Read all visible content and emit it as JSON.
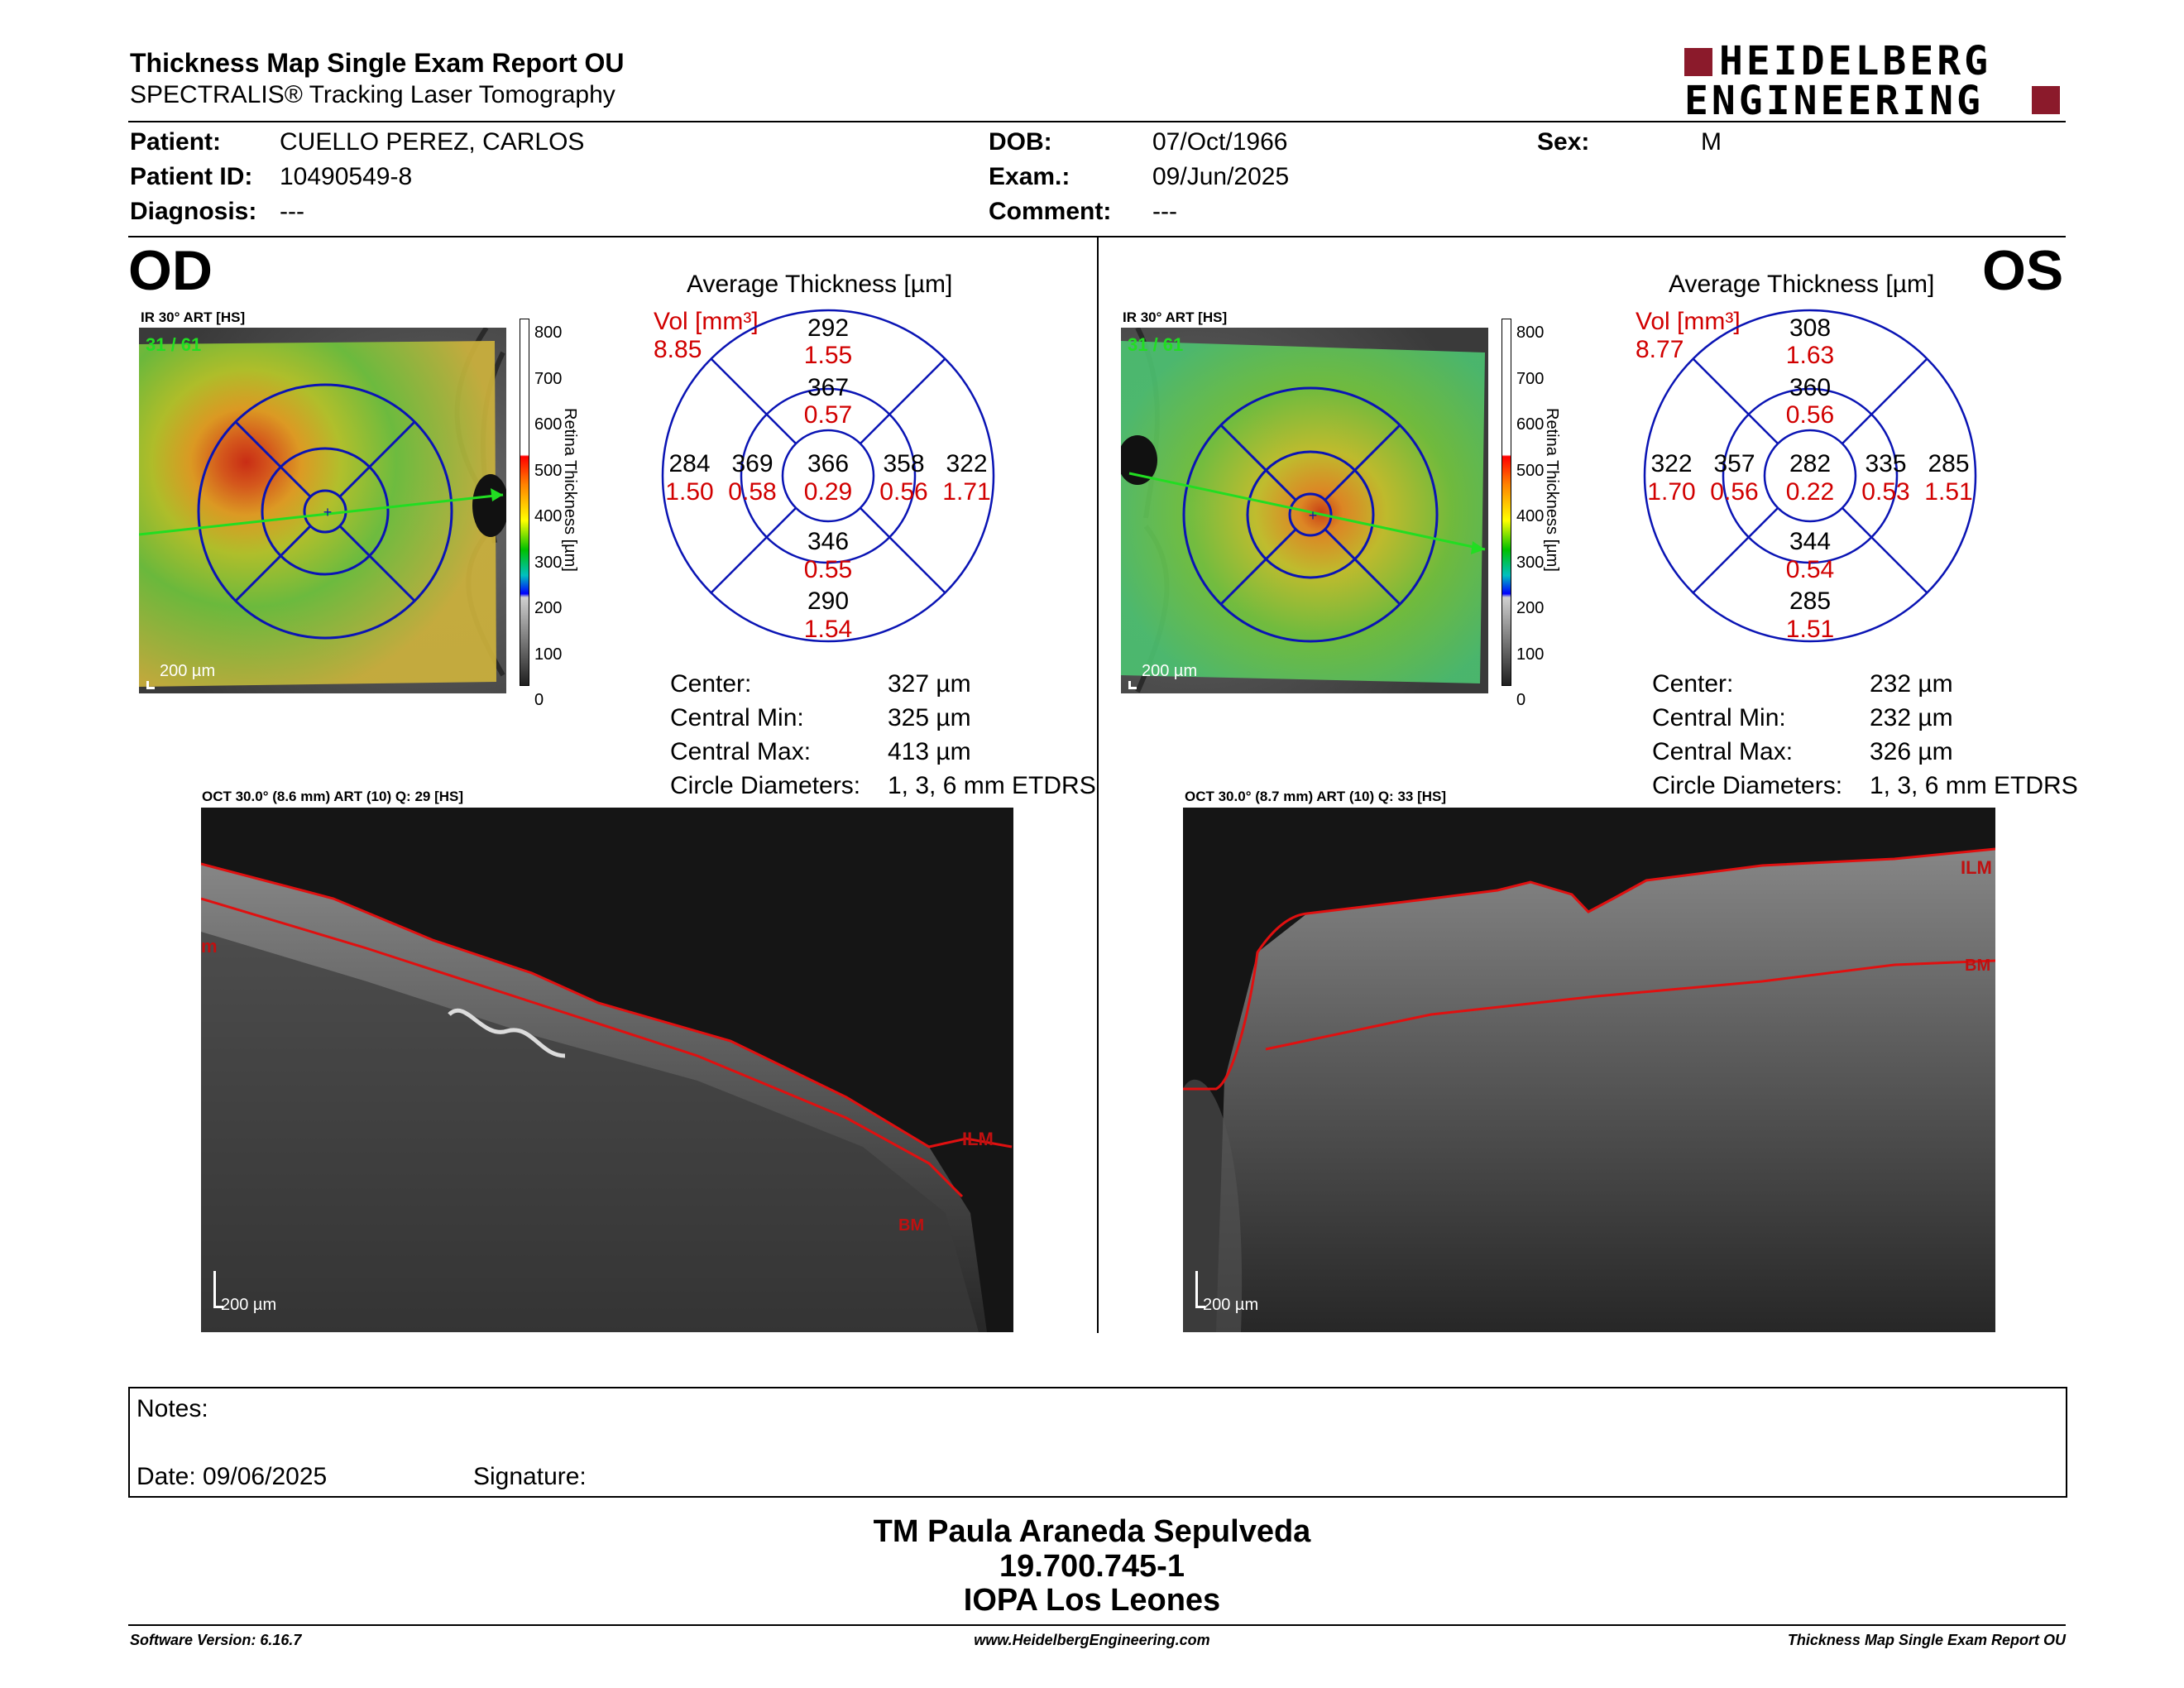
{
  "report": {
    "title": "Thickness Map Single Exam Report OU",
    "subtitle": "SPECTRALIS® Tracking Laser Tomography",
    "logo_line1": "HEIDELBERG",
    "logo_line2": "ENGINEERING"
  },
  "patient": {
    "patient_label": "Patient:",
    "patient_value": "CUELLO PEREZ, CARLOS",
    "id_label": "Patient ID:",
    "id_value": "10490549-8",
    "diagnosis_label": "Diagnosis:",
    "diagnosis_value": "---",
    "dob_label": "DOB:",
    "dob_value": "07/Oct/1966",
    "exam_label": "Exam.:",
    "exam_value": "09/Jun/2025",
    "comment_label": "Comment:",
    "comment_value": "---",
    "sex_label": "Sex:",
    "sex_value": "M"
  },
  "od": {
    "eye": "OD",
    "ir_title": "IR 30° ART [HS]",
    "frame": "31 / 61",
    "scale": "200 µm",
    "colorbar_ticks": [
      "800",
      "700",
      "600",
      "500",
      "400",
      "300",
      "200",
      "100",
      "0"
    ],
    "colorbar_label": "Retina Thickness [µm]",
    "avg_title": "Average Thickness [µm]",
    "vol_label": "Vol [mm³]",
    "vol_value": "8.85",
    "sectors": {
      "outer_top": "292",
      "outer_top_vol": "1.55",
      "inner_top": "367",
      "inner_top_vol": "0.57",
      "outer_left": "284",
      "outer_left_vol": "1.50",
      "inner_left": "369",
      "inner_left_vol": "0.58",
      "center": "366",
      "center_vol": "0.29",
      "inner_right": "358",
      "inner_right_vol": "0.56",
      "outer_right": "322",
      "outer_right_vol": "1.71",
      "inner_bottom": "346",
      "inner_bottom_vol": "0.55",
      "outer_bottom": "290",
      "outer_bottom_vol": "1.54"
    },
    "stats": {
      "center_label": "Center:",
      "center_value": "327 µm",
      "min_label": "Central Min:",
      "min_value": "325 µm",
      "max_label": "Central Max:",
      "max_value": "413 µm",
      "diam_label": "Circle Diameters:",
      "diam_value": "1, 3, 6 mm ETDRS"
    },
    "oct_title": "OCT 30.0° (8.6 mm) ART (10) Q: 29 [HS]",
    "oct_scale": "200 µm",
    "ilm": "ILM",
    "bm": "BM"
  },
  "os": {
    "eye": "OS",
    "ir_title": "IR 30° ART [HS]",
    "frame": "31 / 61",
    "scale": "200 µm",
    "colorbar_ticks": [
      "800",
      "700",
      "600",
      "500",
      "400",
      "300",
      "200",
      "100",
      "0"
    ],
    "colorbar_label": "Retina Thickness [µm]",
    "avg_title": "Average Thickness [µm]",
    "vol_label": "Vol [mm³]",
    "vol_value": "8.77",
    "sectors": {
      "outer_top": "308",
      "outer_top_vol": "1.63",
      "inner_top": "360",
      "inner_top_vol": "0.56",
      "outer_left": "322",
      "outer_left_vol": "1.70",
      "inner_left": "357",
      "inner_left_vol": "0.56",
      "center": "282",
      "center_vol": "0.22",
      "inner_right": "335",
      "inner_right_vol": "0.53",
      "outer_right": "285",
      "outer_right_vol": "1.51",
      "inner_bottom": "344",
      "inner_bottom_vol": "0.54",
      "outer_bottom": "285",
      "outer_bottom_vol": "1.51"
    },
    "stats": {
      "center_label": "Center:",
      "center_value": "232 µm",
      "min_label": "Central Min:",
      "min_value": "232 µm",
      "max_label": "Central Max:",
      "max_value": "326 µm",
      "diam_label": "Circle Diameters:",
      "diam_value": "1, 3, 6 mm ETDRS"
    },
    "oct_title": "OCT 30.0° (8.7 mm) ART (10) Q: 33 [HS]",
    "oct_scale": "200 µm",
    "ilm": "ILM",
    "bm": "BM"
  },
  "notes": {
    "notes_label": "Notes:",
    "date_label": "Date: 09/06/2025",
    "signature_label": "Signature:"
  },
  "signer": {
    "name": "TM Paula Araneda Sepulveda",
    "id": "19.700.745-1",
    "org": "IOPA Los Leones"
  },
  "footer": {
    "software": "Software Version: 6.16.7",
    "website": "www.HeidelbergEngineering.com",
    "report_name": "Thickness Map Single Exam Report OU"
  },
  "colors": {
    "accent_red": "#8b1a2b",
    "value_red": "#d10000",
    "grid_blue": "#0a14b4",
    "scan_green": "#22dd22"
  }
}
